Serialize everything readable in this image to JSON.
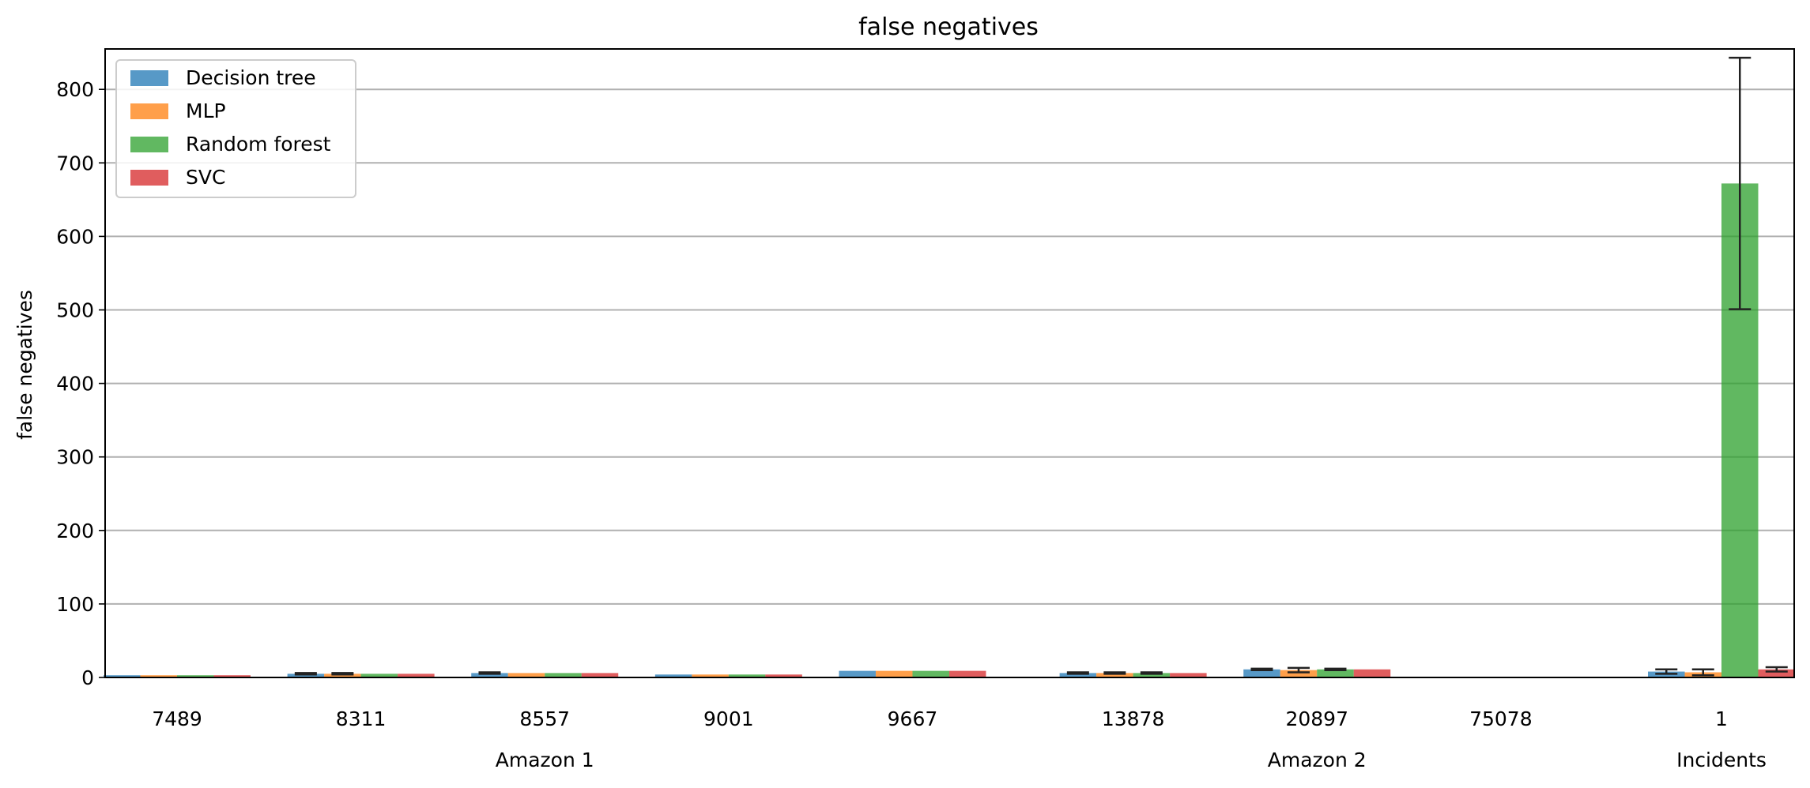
{
  "chart_data": {
    "type": "bar",
    "title": "false negatives",
    "ylabel": "false negatives",
    "xlabel": "",
    "ylim": [
      0,
      855
    ],
    "yticks": [
      0,
      100,
      200,
      300,
      400,
      500,
      600,
      700,
      800
    ],
    "grid": "y",
    "legend_position": "top-left",
    "categories": [
      "7489",
      "8311",
      "8557",
      "9001",
      "9667",
      "13878",
      "20897",
      "75078",
      "1"
    ],
    "groups": [
      {
        "label": "Amazon 1",
        "categories": [
          "7489",
          "8311",
          "8557",
          "9001",
          "9667"
        ]
      },
      {
        "label": "Amazon 2",
        "categories": [
          "13878",
          "20897",
          "75078"
        ]
      },
      {
        "label": "Incidents",
        "categories": [
          "1"
        ]
      }
    ],
    "series": [
      {
        "name": "Decision tree",
        "color": "#1f77b4",
        "values": [
          3,
          5,
          6,
          4,
          9,
          6,
          11,
          1,
          8
        ],
        "errors": [
          0,
          1,
          1,
          0,
          0,
          1,
          1,
          0,
          3
        ]
      },
      {
        "name": "MLP",
        "color": "#ff7f0e",
        "values": [
          3,
          5,
          6,
          4,
          9,
          6,
          10,
          1,
          7
        ],
        "errors": [
          0,
          1,
          0,
          0,
          0,
          1,
          3,
          0,
          4
        ]
      },
      {
        "name": "Random forest",
        "color": "#2ca02c",
        "values": [
          3,
          5,
          6,
          4,
          9,
          6,
          11,
          1,
          672
        ],
        "errors": [
          0,
          0,
          0,
          0,
          0,
          1,
          1,
          0,
          171
        ]
      },
      {
        "name": "SVC",
        "color": "#d62728",
        "values": [
          3,
          5,
          6,
          4,
          9,
          6,
          11,
          1,
          11
        ],
        "errors": [
          0,
          0,
          0,
          0,
          0,
          0,
          0,
          0,
          3
        ]
      }
    ]
  }
}
